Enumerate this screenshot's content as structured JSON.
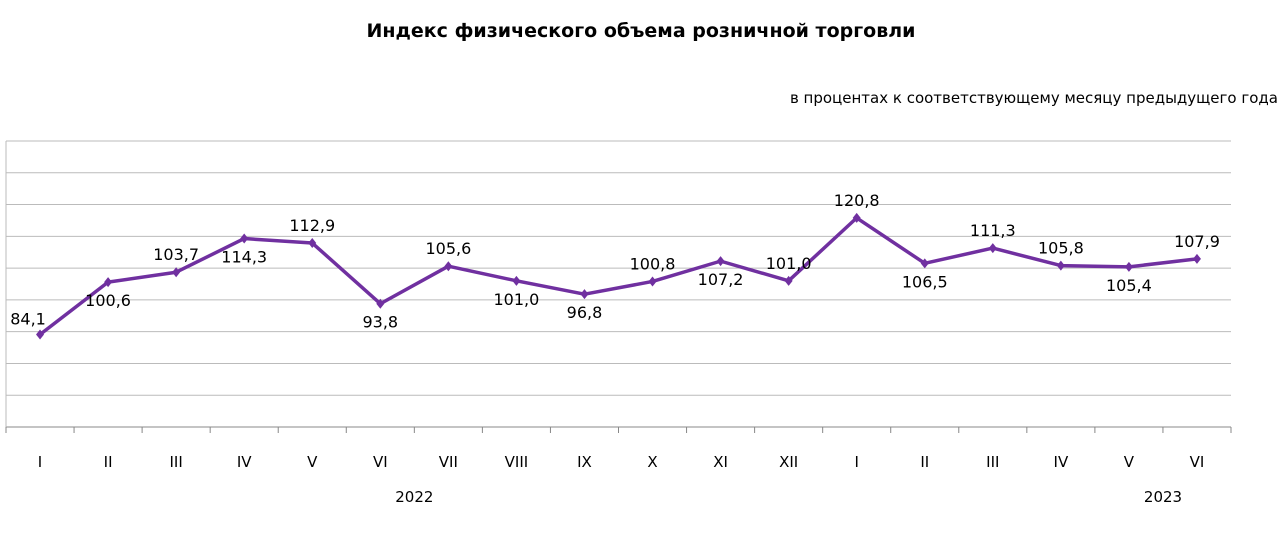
{
  "chart_data": {
    "type": "line",
    "title": "Индекс физического объема розничной торговли",
    "subtitle": "в процентах к соответствующему месяцу предыдущего года",
    "categories": [
      "I",
      "II",
      "III",
      "IV",
      "V",
      "VI",
      "VII",
      "VIII",
      "IX",
      "X",
      "XI",
      "XII",
      "I",
      "II",
      "III",
      "IV",
      "V",
      "VI"
    ],
    "year_labels": [
      {
        "label": "2022",
        "from": 0,
        "to": 11
      },
      {
        "label": "2023",
        "from": 12,
        "to": 17
      }
    ],
    "series": [
      {
        "name": "Индекс",
        "color": "#7030a0",
        "values": [
          84.1,
          100.6,
          103.7,
          114.3,
          112.9,
          93.8,
          105.6,
          101.0,
          96.8,
          100.8,
          107.2,
          101.0,
          120.8,
          106.5,
          111.3,
          105.8,
          105.4,
          107.9
        ],
        "labels": [
          "84,1",
          "100,6",
          "103,7",
          "114,3",
          "112,9",
          "93,8",
          "105,6",
          "101,0",
          "96,8",
          "100,8",
          "107,2",
          "101,0",
          "120,8",
          "106,5",
          "111,3",
          "105,8",
          "105,4",
          "107,9"
        ],
        "label_pos": [
          "left",
          "below",
          "above",
          "below",
          "above",
          "below",
          "above",
          "below",
          "below",
          "above",
          "below",
          "above",
          "above",
          "below",
          "above",
          "above",
          "below",
          "above"
        ]
      }
    ],
    "ylim": [
      55,
      145
    ],
    "grid": true,
    "legend": "none"
  }
}
